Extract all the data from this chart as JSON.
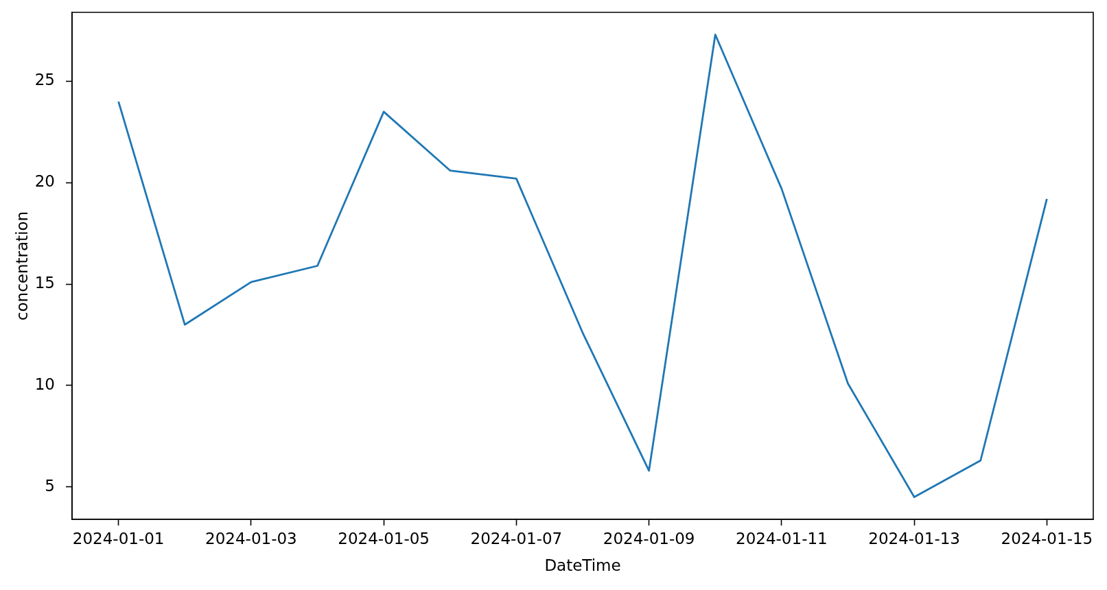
{
  "chart_data": {
    "type": "line",
    "xlabel": "DateTime",
    "ylabel": "concentration",
    "x": [
      "2024-01-01",
      "2024-01-02",
      "2024-01-03",
      "2024-01-04",
      "2024-01-05",
      "2024-01-06",
      "2024-01-07",
      "2024-01-08",
      "2024-01-09",
      "2024-01-10",
      "2024-01-11",
      "2024-01-12",
      "2024-01-13",
      "2024-01-14",
      "2024-01-15"
    ],
    "values": [
      24.0,
      13.0,
      15.1,
      15.9,
      23.5,
      20.6,
      20.2,
      12.6,
      5.8,
      27.3,
      19.7,
      10.1,
      4.5,
      6.3,
      19.2
    ],
    "color": "#1f77b4",
    "xlim": [
      "2023-12-31T07:12",
      "2024-01-15T16:48"
    ],
    "xticks": [
      "2024-01-01",
      "2024-01-03",
      "2024-01-05",
      "2024-01-07",
      "2024-01-09",
      "2024-01-11",
      "2024-01-13",
      "2024-01-15"
    ],
    "ylim": [
      3.4,
      28.4
    ],
    "yticks": [
      5,
      10,
      15,
      20,
      25
    ],
    "grid": false
  }
}
